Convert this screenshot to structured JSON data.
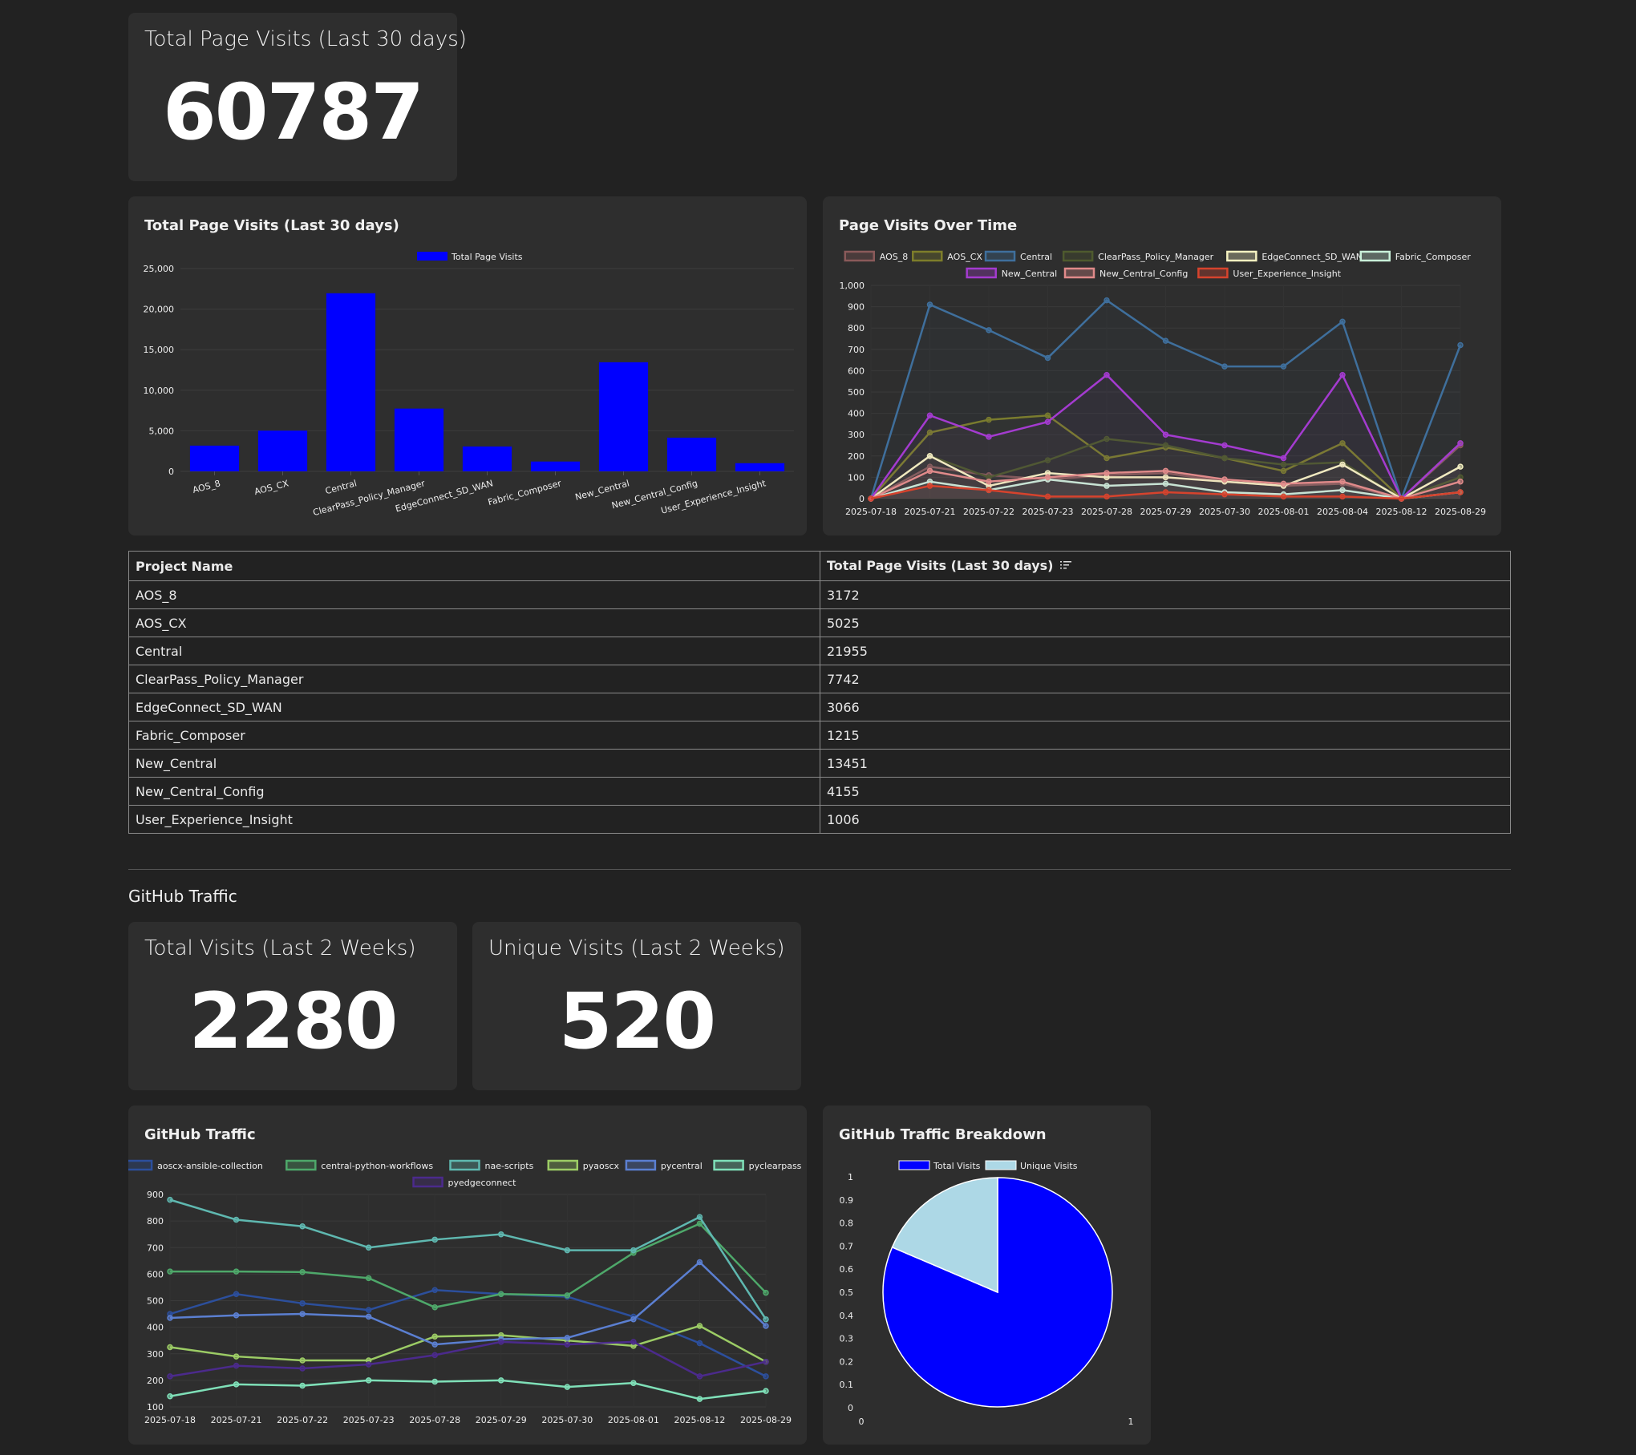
{
  "kpi_total": {
    "title": "Total Page Visits (Last 30 days)",
    "value": "60787"
  },
  "bar_chart": {
    "title": "Total Page Visits (Last 30 days)"
  },
  "line_chart": {
    "title": "Page Visits Over Time"
  },
  "table": {
    "headers": [
      "Project Name",
      "Total Page Visits (Last 30 days)"
    ],
    "rows": [
      [
        "AOS_8",
        "3172"
      ],
      [
        "AOS_CX",
        "5025"
      ],
      [
        "Central",
        "21955"
      ],
      [
        "ClearPass_Policy_Manager",
        "7742"
      ],
      [
        "EdgeConnect_SD_WAN",
        "3066"
      ],
      [
        "Fabric_Composer",
        "1215"
      ],
      [
        "New_Central",
        "13451"
      ],
      [
        "New_Central_Config",
        "4155"
      ],
      [
        "User_Experience_Insight",
        "1006"
      ]
    ]
  },
  "github": {
    "section_title": "GitHub Traffic",
    "total": {
      "title": "Total Visits (Last 2 Weeks)",
      "value": "2280"
    },
    "unique": {
      "title": "Unique Visits (Last 2 Weeks)",
      "value": "520"
    },
    "line_title": "GitHub Traffic",
    "pie_title": "GitHub Traffic Breakdown"
  },
  "chart_data": [
    {
      "type": "bar",
      "title": "Total Page Visits (Last 30 days)",
      "legend": "Total Page Visits",
      "color": "#0000ff",
      "categories": [
        "AOS_8",
        "AOS_CX",
        "Central",
        "ClearPass_Policy_Manager",
        "EdgeConnect_SD_WAN",
        "Fabric_Composer",
        "New_Central",
        "New_Central_Config",
        "User_Experience_Insight"
      ],
      "values": [
        3172,
        5025,
        21955,
        7742,
        3066,
        1215,
        13451,
        4155,
        1006
      ],
      "ylim": [
        0,
        25000
      ],
      "yticks": [
        0,
        5000,
        10000,
        15000,
        20000,
        25000
      ],
      "ytick_labels": [
        "0",
        "5,000",
        "10,000",
        "15,000",
        "20,000",
        "25,000"
      ]
    },
    {
      "type": "line",
      "title": "Page Visits Over Time",
      "x": [
        "2025-07-18",
        "2025-07-21",
        "2025-07-22",
        "2025-07-23",
        "2025-07-28",
        "2025-07-29",
        "2025-07-30",
        "2025-08-01",
        "2025-08-04",
        "2025-08-12",
        "2025-08-29"
      ],
      "ylim": [
        0,
        1000
      ],
      "yticks": [
        0,
        100,
        200,
        300,
        400,
        500,
        600,
        700,
        800,
        900,
        1000
      ],
      "ytick_labels": [
        "0",
        "100",
        "200",
        "300",
        "400",
        "500",
        "600",
        "700",
        "800",
        "900",
        "1,000"
      ],
      "series": [
        {
          "name": "AOS_8",
          "color": "#8a5a5a",
          "values": [
            0,
            150,
            110,
            90,
            110,
            120,
            80,
            60,
            70,
            0,
            250
          ]
        },
        {
          "name": "AOS_CX",
          "color": "#7d7d2a",
          "values": [
            0,
            310,
            370,
            390,
            190,
            240,
            190,
            130,
            260,
            0,
            260
          ]
        },
        {
          "name": "Central",
          "color": "#3f6f9c",
          "values": [
            0,
            910,
            790,
            660,
            930,
            740,
            620,
            620,
            830,
            0,
            720
          ]
        },
        {
          "name": "ClearPass_Policy_Manager",
          "color": "#4e5a2e",
          "values": [
            0,
            200,
            100,
            180,
            280,
            250,
            190,
            160,
            170,
            0,
            100
          ]
        },
        {
          "name": "EdgeConnect_SD_WAN",
          "color": "#f4f1c0",
          "values": [
            0,
            200,
            60,
            120,
            100,
            100,
            80,
            60,
            160,
            0,
            150
          ]
        },
        {
          "name": "Fabric_Composer",
          "color": "#c9f0d9",
          "values": [
            0,
            80,
            40,
            90,
            60,
            70,
            30,
            20,
            40,
            0,
            30
          ]
        },
        {
          "name": "New_Central",
          "color": "#a43bd0",
          "values": [
            0,
            390,
            290,
            360,
            580,
            300,
            250,
            190,
            580,
            0,
            260
          ]
        },
        {
          "name": "New_Central_Config",
          "color": "#e08a8a",
          "values": [
            0,
            130,
            80,
            100,
            120,
            130,
            90,
            70,
            80,
            0,
            80
          ]
        },
        {
          "name": "User_Experience_Insight",
          "color": "#d6432d",
          "values": [
            0,
            60,
            40,
            10,
            10,
            30,
            20,
            10,
            10,
            0,
            30
          ]
        }
      ]
    },
    {
      "type": "line",
      "title": "GitHub Traffic",
      "x": [
        "2025-07-18",
        "2025-07-21",
        "2025-07-22",
        "2025-07-23",
        "2025-07-28",
        "2025-07-29",
        "2025-07-30",
        "2025-08-01",
        "2025-08-12",
        "2025-08-29"
      ],
      "ylim": [
        100,
        900
      ],
      "yticks": [
        100,
        200,
        300,
        400,
        500,
        600,
        700,
        800,
        900
      ],
      "ytick_labels": [
        "100",
        "200",
        "300",
        "400",
        "500",
        "600",
        "700",
        "800",
        "900"
      ],
      "series": [
        {
          "name": "aoscx-ansible-collection",
          "color": "#2c4f9c",
          "values": [
            450,
            525,
            490,
            465,
            540,
            525,
            515,
            440,
            340,
            215
          ]
        },
        {
          "name": "central-python-workflows",
          "color": "#4ea86a",
          "values": [
            610,
            610,
            608,
            585,
            475,
            525,
            520,
            680,
            790,
            530
          ]
        },
        {
          "name": "nae-scripts",
          "color": "#5fb8b0",
          "values": [
            880,
            805,
            780,
            700,
            730,
            750,
            690,
            690,
            815,
            430
          ]
        },
        {
          "name": "pyaoscx",
          "color": "#9ccc65",
          "values": [
            325,
            290,
            275,
            275,
            365,
            370,
            350,
            330,
            405,
            270
          ]
        },
        {
          "name": "pycentral",
          "color": "#5b7fd1",
          "values": [
            435,
            445,
            450,
            440,
            335,
            355,
            360,
            430,
            645,
            405
          ]
        },
        {
          "name": "pyclearpass",
          "color": "#7fe0b8",
          "values": [
            140,
            185,
            180,
            200,
            195,
            200,
            175,
            190,
            130,
            160
          ]
        },
        {
          "name": "pyedgeconnect",
          "color": "#4b2a8c",
          "values": [
            215,
            255,
            245,
            260,
            295,
            345,
            335,
            345,
            215,
            270
          ]
        }
      ]
    },
    {
      "type": "pie",
      "title": "GitHub Traffic Breakdown",
      "labels": [
        "Total Visits",
        "Unique Visits"
      ],
      "values": [
        2280,
        520
      ],
      "colors": [
        "#0000ff",
        "#add8e6"
      ],
      "yticks": [
        "0",
        "0.1",
        "0.2",
        "0.3",
        "0.4",
        "0.5",
        "0.6",
        "0.7",
        "0.8",
        "0.9",
        "1"
      ],
      "xticks": [
        "0",
        "1"
      ]
    }
  ]
}
